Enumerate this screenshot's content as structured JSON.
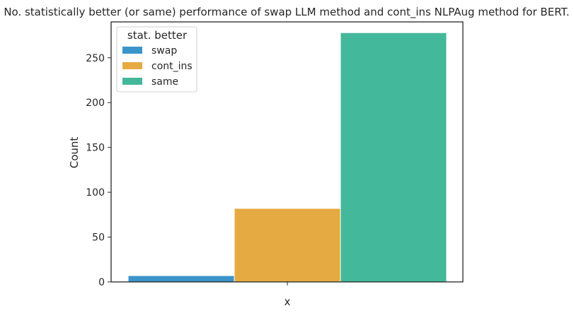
{
  "chart_data": {
    "type": "bar",
    "title": "No. statistically better (or same) performance of swap LLM method and cont_ins NLPAug method for BERT.",
    "xlabel": "x",
    "ylabel": "Count",
    "categories": [
      ""
    ],
    "ylim": [
      0,
      290
    ],
    "yticks": [
      0,
      50,
      100,
      150,
      200,
      250
    ],
    "grid": false,
    "legend": {
      "title": "stat. better",
      "placement": "top-left"
    },
    "series": [
      {
        "name": "swap",
        "values": [
          7
        ],
        "color": "#3b95cb"
      },
      {
        "name": "cont_ins",
        "values": [
          82
        ],
        "color": "#e6aa43"
      },
      {
        "name": "same",
        "values": [
          278
        ],
        "color": "#44b89a"
      }
    ]
  }
}
